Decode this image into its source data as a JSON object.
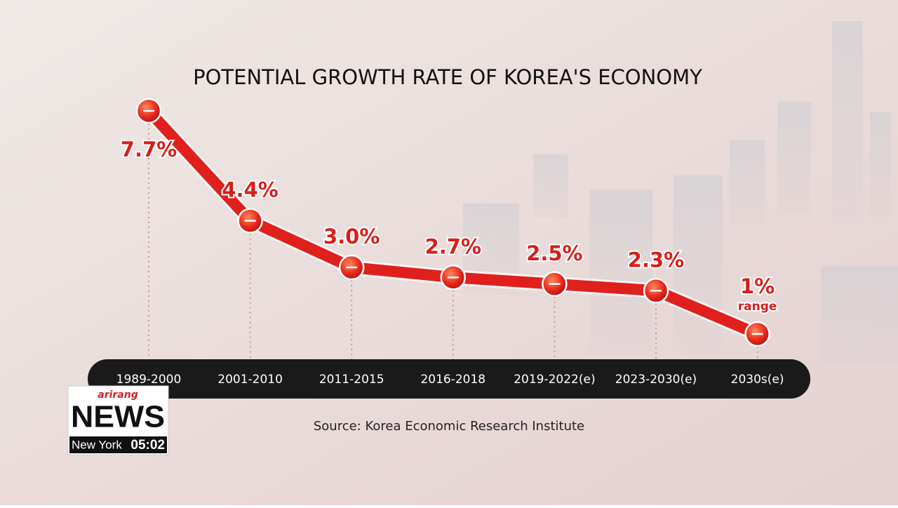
{
  "chart_data": {
    "type": "line",
    "title": "POTENTIAL GROWTH RATE OF KOREA'S ECONOMY",
    "categories": [
      "1989-2000",
      "2001-2010",
      "2011-2015",
      "2016-2018",
      "2019-2022(e)",
      "2023-2030(e)",
      "2030s(e)"
    ],
    "values": [
      7.7,
      4.4,
      3.0,
      2.7,
      2.5,
      2.3,
      1
    ],
    "value_labels": [
      "7.7%",
      "4.4%",
      "3.0%",
      "2.7%",
      "2.5%",
      "2.3%",
      "1%"
    ],
    "last_label_note": "range",
    "color": "#e0201c",
    "source": "Source: Korea Economic Research Institute"
  },
  "overlay": {
    "brand": "arirang",
    "program": "NEWS",
    "city": "New York",
    "time": "05:02"
  }
}
